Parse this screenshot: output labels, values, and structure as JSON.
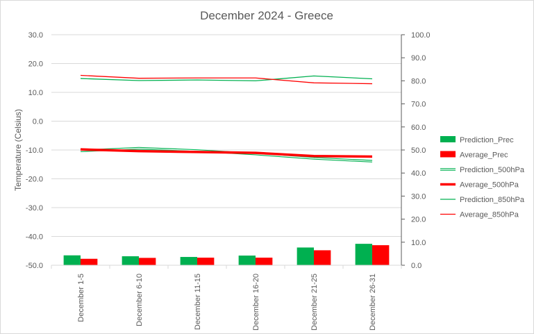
{
  "chart_data": {
    "type": "bar",
    "title": "December 2024 - Greece",
    "categories": [
      "December 1-5",
      "December 6-10",
      "December 11-15",
      "December 16-20",
      "December 21-25",
      "December 26-31"
    ],
    "y_left": {
      "label": "Temperature (Celsius)",
      "lim": [
        -50,
        30
      ],
      "ticks": [
        "30.0",
        "20.0",
        "10.0",
        "0.0",
        "-10.0",
        "-20.0",
        "-30.0",
        "-40.0",
        "-50.0"
      ]
    },
    "y_right": {
      "label": "",
      "lim": [
        0,
        100
      ],
      "ticks": [
        "100.0",
        "90.0",
        "80.0",
        "70.0",
        "60.0",
        "50.0",
        "40.0",
        "30.0",
        "20.0",
        "10.0",
        "0.0"
      ]
    },
    "grid": true,
    "legend_position": "right",
    "series": [
      {
        "name": "Prediction_Prec",
        "kind": "bar",
        "axis": "right",
        "color": "#00b050",
        "values": [
          4.3,
          3.9,
          3.6,
          4.2,
          7.7,
          9.3
        ]
      },
      {
        "name": "Average_Prec",
        "kind": "bar",
        "axis": "right",
        "color": "#ff0000",
        "values": [
          2.8,
          3.2,
          3.3,
          3.3,
          6.5,
          8.7
        ]
      },
      {
        "name": "Prediction_500hPa",
        "kind": "line",
        "style": "double",
        "axis": "left",
        "color": "#00b050",
        "values": [
          -10.3,
          -9.4,
          -10.2,
          -11.4,
          -12.9,
          -13.9
        ]
      },
      {
        "name": "Average_500hPa",
        "kind": "line",
        "style": "thick",
        "axis": "left",
        "color": "#ff0000",
        "values": [
          -9.8,
          -10.4,
          -10.7,
          -11.0,
          -12.1,
          -12.3
        ]
      },
      {
        "name": "Prediction_850hPa",
        "kind": "line",
        "style": "thin",
        "axis": "left",
        "color": "#00b050",
        "values": [
          14.8,
          14.1,
          14.3,
          14.0,
          15.7,
          14.7
        ]
      },
      {
        "name": "Average_850hPa",
        "kind": "line",
        "style": "thin",
        "axis": "left",
        "color": "#ff0000",
        "values": [
          15.9,
          14.9,
          15.0,
          15.0,
          13.3,
          13.0
        ]
      }
    ]
  }
}
